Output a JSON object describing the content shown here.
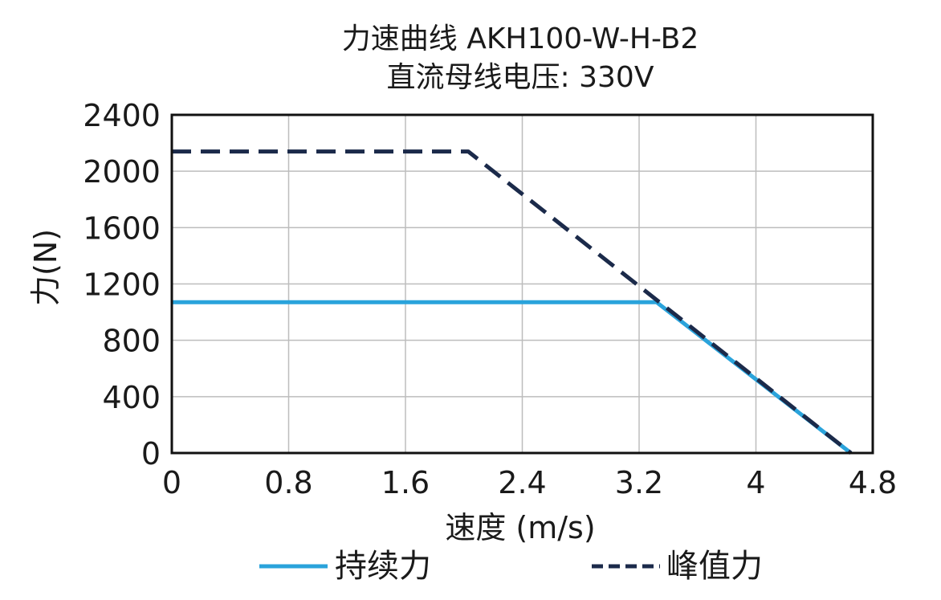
{
  "chart_data": {
    "type": "line",
    "title": "力速曲线 AKH100-W-H-B2",
    "subtitle": "直流母线电压: 330V",
    "xlabel": "速度 (m/s)",
    "ylabel": "力(N)",
    "xlim": [
      0,
      4.8
    ],
    "ylim": [
      0,
      2400
    ],
    "xticks": [
      0,
      0.8,
      1.6,
      2.4,
      3.2,
      4,
      4.8
    ],
    "xtick_labels": [
      "0",
      "0.8",
      "1.6",
      "2.4",
      "3.2",
      "4",
      "4.8"
    ],
    "yticks": [
      0,
      400,
      800,
      1200,
      1600,
      2000,
      2400
    ],
    "ytick_labels": [
      "0",
      "400",
      "800",
      "1200",
      "1600",
      "2000",
      "2400"
    ],
    "grid": true,
    "legend_position": "bottom",
    "series": [
      {
        "name": "持续力",
        "style": "solid",
        "color": "#2aa3db",
        "points": [
          [
            0,
            1070
          ],
          [
            3.32,
            1070
          ],
          [
            4.65,
            0
          ]
        ]
      },
      {
        "name": "峰值力",
        "style": "dashed",
        "color": "#1b2a4a",
        "points": [
          [
            0,
            2140
          ],
          [
            2.03,
            2140
          ],
          [
            4.65,
            0
          ]
        ]
      }
    ]
  }
}
